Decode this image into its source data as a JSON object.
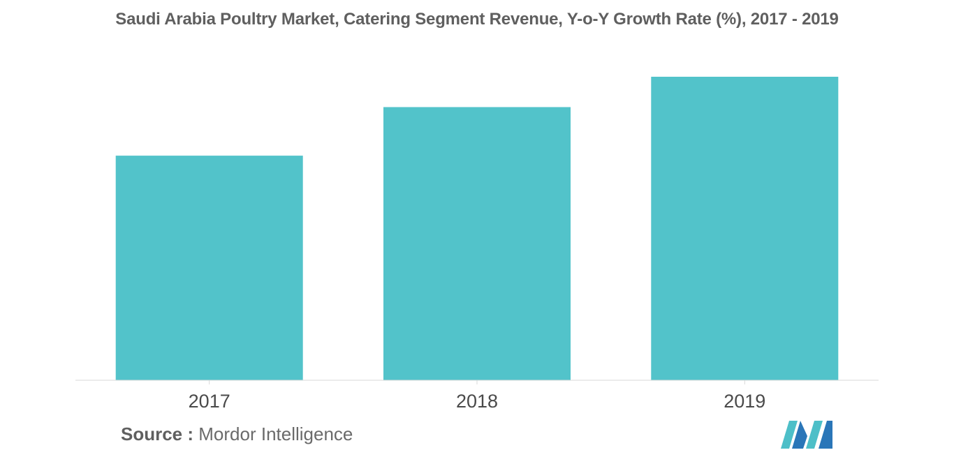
{
  "chart_data": {
    "type": "bar",
    "title": "Saudi Arabia Poultry Market, Catering Segment Revenue, Y-o-Y Growth Rate (%), 2017 - 2019",
    "categories": [
      "2017",
      "2018",
      "2019"
    ],
    "values": [
      74,
      90,
      100
    ],
    "ylim": [
      0,
      100
    ],
    "xlabel": "",
    "ylabel": "",
    "grid": false,
    "legend": "none",
    "bar_color": "#52c3ca"
  },
  "source": {
    "label": "Source :",
    "text": "Mordor Intelligence"
  },
  "logo": {
    "icon": "mordor-intelligence-logo-icon",
    "colors": [
      "#4dbfc8",
      "#2a76b8"
    ]
  }
}
